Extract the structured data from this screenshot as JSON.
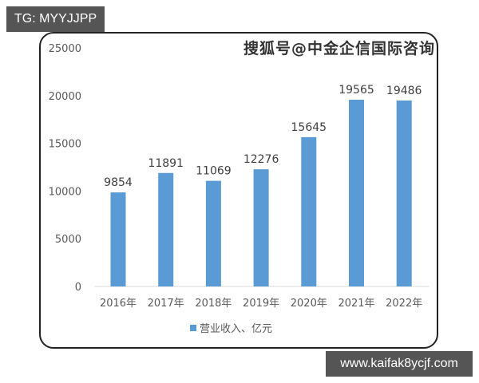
{
  "overlays": {
    "top_left_tag": "TG: MYYJJPP",
    "bottom_right_tag": "www.kaifak8ycjf.com",
    "watermark": "搜狐号@中金企信国际咨询"
  },
  "colors": {
    "bar": "#5b9bd5",
    "axis_text": "#595959",
    "label_text": "#404040",
    "tag_bg": "#555555"
  },
  "chart_data": {
    "type": "bar",
    "title": "",
    "categories": [
      "2016年",
      "2017年",
      "2018年",
      "2019年",
      "2020年",
      "2021年",
      "2022年"
    ],
    "series": [
      {
        "name": "营业收入、亿元",
        "values": [
          9854,
          11891,
          11069,
          12276,
          15645,
          19565,
          19486
        ]
      }
    ],
    "data_labels": [
      "9854",
      "11891",
      "11069",
      "12276",
      "15645",
      "19565",
      "19486"
    ],
    "xlabel": "",
    "ylabel": "",
    "ylim": [
      0,
      25000
    ],
    "yticks": [
      "0",
      "5000",
      "10000",
      "15000",
      "20000",
      "25000"
    ],
    "grid": false,
    "legend": {
      "position": "bottom",
      "entries": [
        "营业收入、亿元"
      ]
    }
  }
}
